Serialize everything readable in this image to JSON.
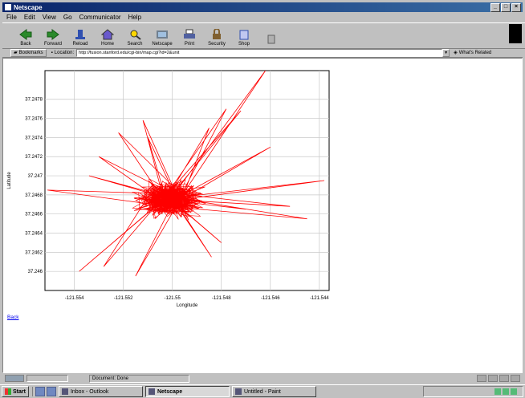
{
  "window": {
    "title": "Netscape"
  },
  "menu": [
    "File",
    "Edit",
    "View",
    "Go",
    "Communicator",
    "Help"
  ],
  "toolbar": [
    {
      "label": "Back",
      "icon": "back-arrow-icon"
    },
    {
      "label": "Forward",
      "icon": "forward-arrow-icon"
    },
    {
      "label": "Reload",
      "icon": "reload-icon"
    },
    {
      "label": "Home",
      "icon": "home-icon"
    },
    {
      "label": "Search",
      "icon": "search-icon"
    },
    {
      "label": "Netscape",
      "icon": "netscape-icon"
    },
    {
      "label": "Print",
      "icon": "print-icon"
    },
    {
      "label": "Security",
      "icon": "lock-icon"
    },
    {
      "label": "Shop",
      "icon": "shop-icon"
    },
    {
      "label": "",
      "icon": "stop-icon"
    }
  ],
  "location": {
    "bookmarks_label": "Bookmarks",
    "location_label": "Location:",
    "url": "http://fusion.stanford.edu/cgi-bin/map.cgi?id=2&unit",
    "related_label": "What's Related"
  },
  "chart_data": {
    "type": "line",
    "xlabel": "Longitude",
    "ylabel": "Latitude",
    "x_ticks": [
      "-121.554",
      "-121.552",
      "-121.55",
      "-121.548",
      "-121.546",
      "-121.544"
    ],
    "y_ticks": [
      "37.2478",
      "37.2476",
      "37.2474",
      "37.2472",
      "37.247",
      "37.2468",
      "37.2466",
      "37.2464",
      "37.2462",
      "37.246"
    ],
    "xlim": [
      -121.5552,
      -121.5436
    ],
    "ylim": [
      37.2458,
      37.2481
    ],
    "grid": true,
    "series_color": "#ff0000",
    "cluster_center": {
      "x": -121.5501,
      "y": 37.24675
    },
    "outlier_path": [
      [
        -121.5501,
        37.24675
      ],
      [
        -121.5462,
        37.2481
      ],
      [
        -121.5498,
        37.24672
      ],
      [
        -121.5478,
        37.2477
      ],
      [
        -121.5503,
        37.24678
      ],
      [
        -121.5472,
        37.24768
      ],
      [
        -121.55,
        37.24681
      ],
      [
        -121.5551,
        37.24685
      ],
      [
        -121.5502,
        37.24668
      ],
      [
        -121.5445,
        37.24655
      ],
      [
        -121.5499,
        37.24677
      ],
      [
        -121.5438,
        37.24695
      ],
      [
        -121.5505,
        37.24672
      ],
      [
        -121.5538,
        37.246
      ],
      [
        -121.5507,
        37.24668
      ],
      [
        -121.5528,
        37.24605
      ],
      [
        -121.5509,
        37.24682
      ],
      [
        -121.553,
        37.2472
      ],
      [
        -121.5496,
        37.24676
      ],
      [
        -121.546,
        37.2473
      ],
      [
        -121.5503,
        37.2467
      ],
      [
        -121.5512,
        37.24758
      ],
      [
        -121.55,
        37.2469
      ],
      [
        -121.5522,
        37.24745
      ],
      [
        -121.5501,
        37.24665
      ],
      [
        -121.5515,
        37.24595
      ],
      [
        -121.5498,
        37.2467
      ],
      [
        -121.5484,
        37.24615
      ],
      [
        -121.5499,
        37.24672
      ],
      [
        -121.548,
        37.2463
      ],
      [
        -121.5502,
        37.24678
      ],
      [
        -121.5534,
        37.247
      ],
      [
        -121.55,
        37.24675
      ],
      [
        -121.5452,
        37.24668
      ],
      [
        -121.5501,
        37.24682
      ],
      [
        -121.5485,
        37.2475
      ],
      [
        -121.5497,
        37.2467
      ],
      [
        -121.551,
        37.2474
      ],
      [
        -121.5503,
        37.24679
      ],
      [
        -121.547,
        37.24665
      ],
      [
        -121.55,
        37.24674
      ]
    ],
    "cluster_points": 600,
    "cluster_spread": {
      "x": 0.0011,
      "y": 0.00016
    }
  },
  "back_link": "Back",
  "status": {
    "text": "Document: Done"
  },
  "taskbar": {
    "start": "Start",
    "tasks": [
      "Inbox - Outlook",
      "Netscape",
      "Untitled - Paint"
    ]
  }
}
